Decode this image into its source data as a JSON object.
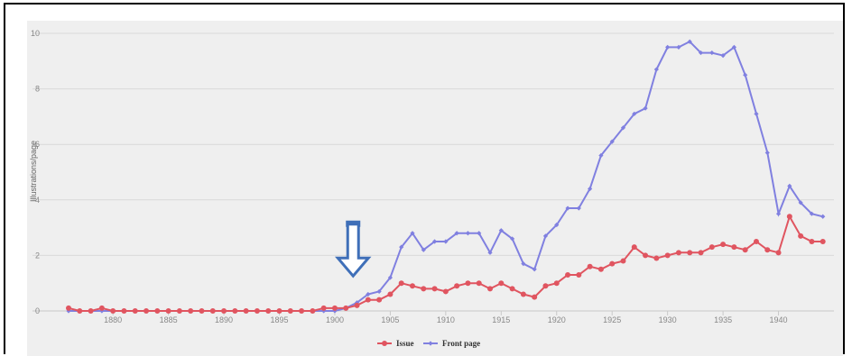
{
  "chart_data": {
    "type": "line",
    "title": "",
    "xlabel": "",
    "ylabel": "Illustrations/page",
    "xlim": [
      1876,
      1945
    ],
    "ylim": [
      0,
      10
    ],
    "x_ticks": [
      "1880",
      "1885",
      "1890",
      "1895",
      "1900",
      "1905",
      "1910",
      "1915",
      "1920",
      "1925",
      "1930",
      "1935",
      "1940"
    ],
    "y_ticks": [
      "0",
      "2",
      "4",
      "6",
      "8",
      "10"
    ],
    "grid": true,
    "legend_position": "bottom-center",
    "x": [
      1876,
      1877,
      1878,
      1879,
      1880,
      1881,
      1882,
      1883,
      1884,
      1885,
      1886,
      1887,
      1888,
      1889,
      1890,
      1891,
      1892,
      1893,
      1894,
      1895,
      1896,
      1897,
      1898,
      1899,
      1900,
      1901,
      1902,
      1903,
      1904,
      1905,
      1906,
      1907,
      1908,
      1909,
      1910,
      1911,
      1912,
      1913,
      1914,
      1915,
      1916,
      1917,
      1918,
      1919,
      1920,
      1921,
      1922,
      1923,
      1924,
      1925,
      1926,
      1927,
      1928,
      1929,
      1930,
      1931,
      1932,
      1933,
      1934,
      1935,
      1936,
      1937,
      1938,
      1939,
      1940,
      1941,
      1942,
      1943,
      1944
    ],
    "series": [
      {
        "name": "Issue",
        "color": "#e05560",
        "values": [
          0.1,
          0.0,
          0.0,
          0.1,
          0.0,
          0.0,
          0.0,
          0.0,
          0.0,
          0.0,
          0.0,
          0.0,
          0.0,
          0.0,
          0.0,
          0.0,
          0.0,
          0.0,
          0.0,
          0.0,
          0.0,
          0.0,
          0.0,
          0.1,
          0.1,
          0.1,
          0.2,
          0.4,
          0.4,
          0.6,
          1.0,
          0.9,
          0.8,
          0.8,
          0.7,
          0.9,
          1.0,
          1.0,
          0.8,
          1.0,
          0.8,
          0.6,
          0.5,
          0.9,
          1.0,
          1.3,
          1.3,
          1.6,
          1.5,
          1.7,
          1.8,
          2.3,
          2.0,
          1.9,
          2.0,
          2.1,
          2.1,
          2.1,
          2.3,
          2.4,
          2.3,
          2.2,
          2.5,
          2.2,
          2.1,
          3.4,
          2.7,
          2.5,
          2.5
        ]
      },
      {
        "name": "Front page",
        "color": "#8080e0",
        "values": [
          0.0,
          0.0,
          0.0,
          0.0,
          0.0,
          0.0,
          0.0,
          0.0,
          0.0,
          0.0,
          0.0,
          0.0,
          0.0,
          0.0,
          0.0,
          0.0,
          0.0,
          0.0,
          0.0,
          0.0,
          0.0,
          0.0,
          0.0,
          0.0,
          0.0,
          0.1,
          0.3,
          0.6,
          0.7,
          1.2,
          2.3,
          2.8,
          2.2,
          2.5,
          2.5,
          2.8,
          2.8,
          2.8,
          2.1,
          2.9,
          2.6,
          1.7,
          1.5,
          2.7,
          3.1,
          3.7,
          3.7,
          4.4,
          5.6,
          6.1,
          6.6,
          7.1,
          7.3,
          8.7,
          9.5,
          9.5,
          9.7,
          9.3,
          9.3,
          9.2,
          9.5,
          8.5,
          7.1,
          5.7,
          3.5,
          4.5,
          3.9,
          3.5,
          3.4
        ]
      }
    ],
    "annotations": [
      {
        "type": "arrow-down",
        "x": 1901,
        "y_top": 2.8,
        "y_bottom": 1.0,
        "color": "#3f6fb8"
      }
    ]
  }
}
